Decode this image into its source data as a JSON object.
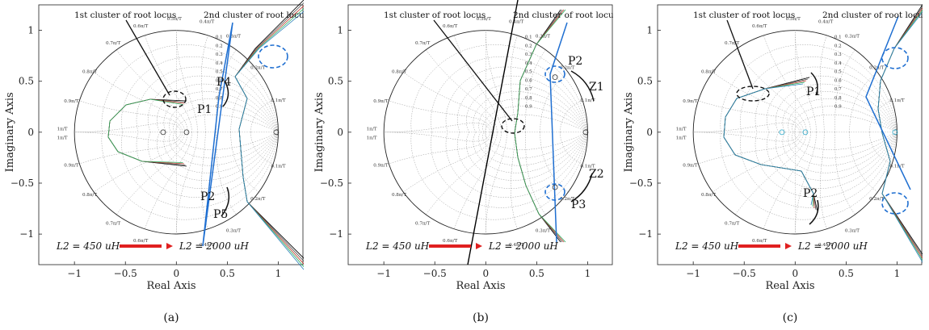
{
  "panels": [
    {
      "id": "a",
      "caption": "(a)",
      "xlabel": "Real Axis",
      "ylabel": "Imaginary Axis",
      "xticks": [
        "−1",
        "−0.5",
        "0",
        "0.5",
        "1"
      ],
      "yticks": [
        "1",
        "0.5",
        "0",
        "−0.5",
        "−1"
      ],
      "annotations": {
        "cluster1": "1st cluster of root locus",
        "cluster2": "2nd cluster of root locus",
        "legend_start": "L2 = 450 uH",
        "legend_end": "L2 = 2000 uH"
      },
      "point_labels": [
        "P4",
        "P1",
        "P2",
        "P5"
      ]
    },
    {
      "id": "b",
      "caption": "(b)",
      "xlabel": "Real Axis",
      "ylabel": "Imaginary Axis",
      "xticks": [
        "−1",
        "−0.5",
        "0",
        "0.5",
        "1"
      ],
      "yticks": [
        "1",
        "0.5",
        "0",
        "−0.5",
        "−1"
      ],
      "annotations": {
        "cluster1": "1st cluster of root locus",
        "cluster2": "2nd cluster of root locus",
        "legend_start": "L2 = 450 uH",
        "legend_end": "L2 = 2000 uH"
      },
      "point_labels": [
        "P2",
        "Z1",
        "Z2",
        "P3"
      ]
    },
    {
      "id": "c",
      "caption": "(c)",
      "xlabel": "Real Axis",
      "ylabel": "Imaginary Axis",
      "xticks": [
        "−1",
        "−0.5",
        "0",
        "0.5",
        "1"
      ],
      "yticks": [
        "1",
        "0.5",
        "0",
        "−0.5",
        "−1"
      ],
      "annotations": {
        "cluster1": "1st cluster of root locus",
        "cluster2": "2nd cluster of root locus",
        "legend_start": "L2 = 450 uH",
        "legend_end": "L2 = 2000 uH"
      },
      "point_labels": [
        "P1",
        "P2"
      ]
    }
  ],
  "grid_labels": {
    "freq_upper": [
      "0.5π/T",
      "0.4π/T",
      "0.3π/T",
      "0.2π/T",
      "0.1π/T",
      "0.6π/T",
      "0.7π/T",
      "0.8π/T",
      "0.9π/T",
      "1π/T"
    ],
    "damping": [
      "0.1",
      "0.2",
      "0.3",
      "0.4",
      "0.5",
      "0.6",
      "0.7",
      "0.8",
      "0.9"
    ]
  },
  "chart_data": [
    {
      "type": "scatter",
      "title": "",
      "xlabel": "Real Axis",
      "ylabel": "Imaginary Axis",
      "xlim": [
        -1.35,
        1.25
      ],
      "ylim": [
        -1.3,
        1.25
      ],
      "grid": "zgrid",
      "series": [
        {
          "points": [
            [
              -0.13,
              0.0
            ],
            [
              0.1,
              0.0
            ],
            [
              0.98,
              0.0
            ]
          ]
        }
      ]
    },
    {
      "type": "scatter",
      "title": "",
      "xlabel": "Real Axis",
      "ylabel": "Imaginary Axis",
      "xlim": [
        -1.35,
        1.25
      ],
      "ylim": [
        -1.3,
        1.25
      ],
      "grid": "zgrid",
      "series": [
        {
          "points": [
            [
              0.98,
              0.0
            ],
            [
              0.68,
              0.54
            ],
            [
              0.68,
              -0.54
            ]
          ]
        }
      ]
    },
    {
      "type": "scatter",
      "title": "",
      "xlabel": "Real Axis",
      "ylabel": "Imaginary Axis",
      "xlim": [
        -1.35,
        1.25
      ],
      "ylim": [
        -1.3,
        1.25
      ],
      "grid": "zgrid",
      "series": [
        {
          "points": [
            [
              -0.13,
              0.0
            ],
            [
              0.1,
              0.0
            ],
            [
              0.98,
              0.0
            ]
          ]
        }
      ]
    }
  ]
}
